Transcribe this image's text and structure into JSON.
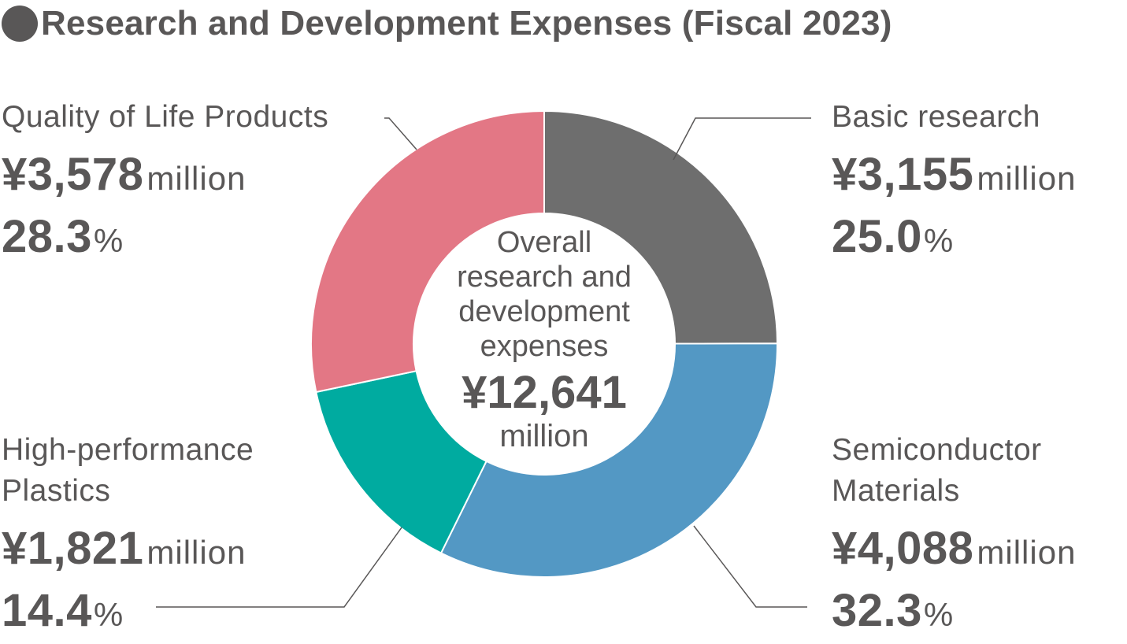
{
  "title": "Research and Development Expenses (Fiscal 2023)",
  "colors": {
    "text": "#595757",
    "basic_research": "#6e6e6e",
    "semiconductor_materials": "#5398c4",
    "high_performance_plastics": "#00aba0",
    "quality_of_life_products": "#e37785"
  },
  "chart_data": {
    "type": "pie",
    "variant": "donut",
    "title": "Research and Development Expenses (Fiscal 2023)",
    "unit": "million yen",
    "total": {
      "label": "Overall research and development expenses",
      "amount": "¥12,641",
      "unit": "million",
      "value": 12641
    },
    "slices": [
      {
        "name": "Basic research",
        "name_lines": [
          "Basic research"
        ],
        "value": 3155,
        "amount": "¥3,155",
        "unit": "million",
        "percent": 25.0,
        "percent_text": "25.0",
        "color": "#6e6e6e"
      },
      {
        "name": "Semiconductor Materials",
        "name_lines": [
          "Semiconductor",
          "Materials"
        ],
        "value": 4088,
        "amount": "¥4,088",
        "unit": "million",
        "percent": 32.3,
        "percent_text": "32.3",
        "color": "#5398c4"
      },
      {
        "name": "High-performance Plastics",
        "name_lines": [
          "High-performance",
          "Plastics"
        ],
        "value": 1821,
        "amount": "¥1,821",
        "unit": "million",
        "percent": 14.4,
        "percent_text": "14.4",
        "color": "#00aba0"
      },
      {
        "name": "Quality of Life Products",
        "name_lines": [
          "Quality of Life Products"
        ],
        "value": 3578,
        "amount": "¥3,578",
        "unit": "million",
        "percent": 28.3,
        "percent_text": "28.3",
        "color": "#e37785"
      }
    ],
    "center_lines": [
      "Overall",
      "research and",
      "development",
      "expenses"
    ],
    "percent_sign": "%",
    "legend": "labels-around"
  }
}
